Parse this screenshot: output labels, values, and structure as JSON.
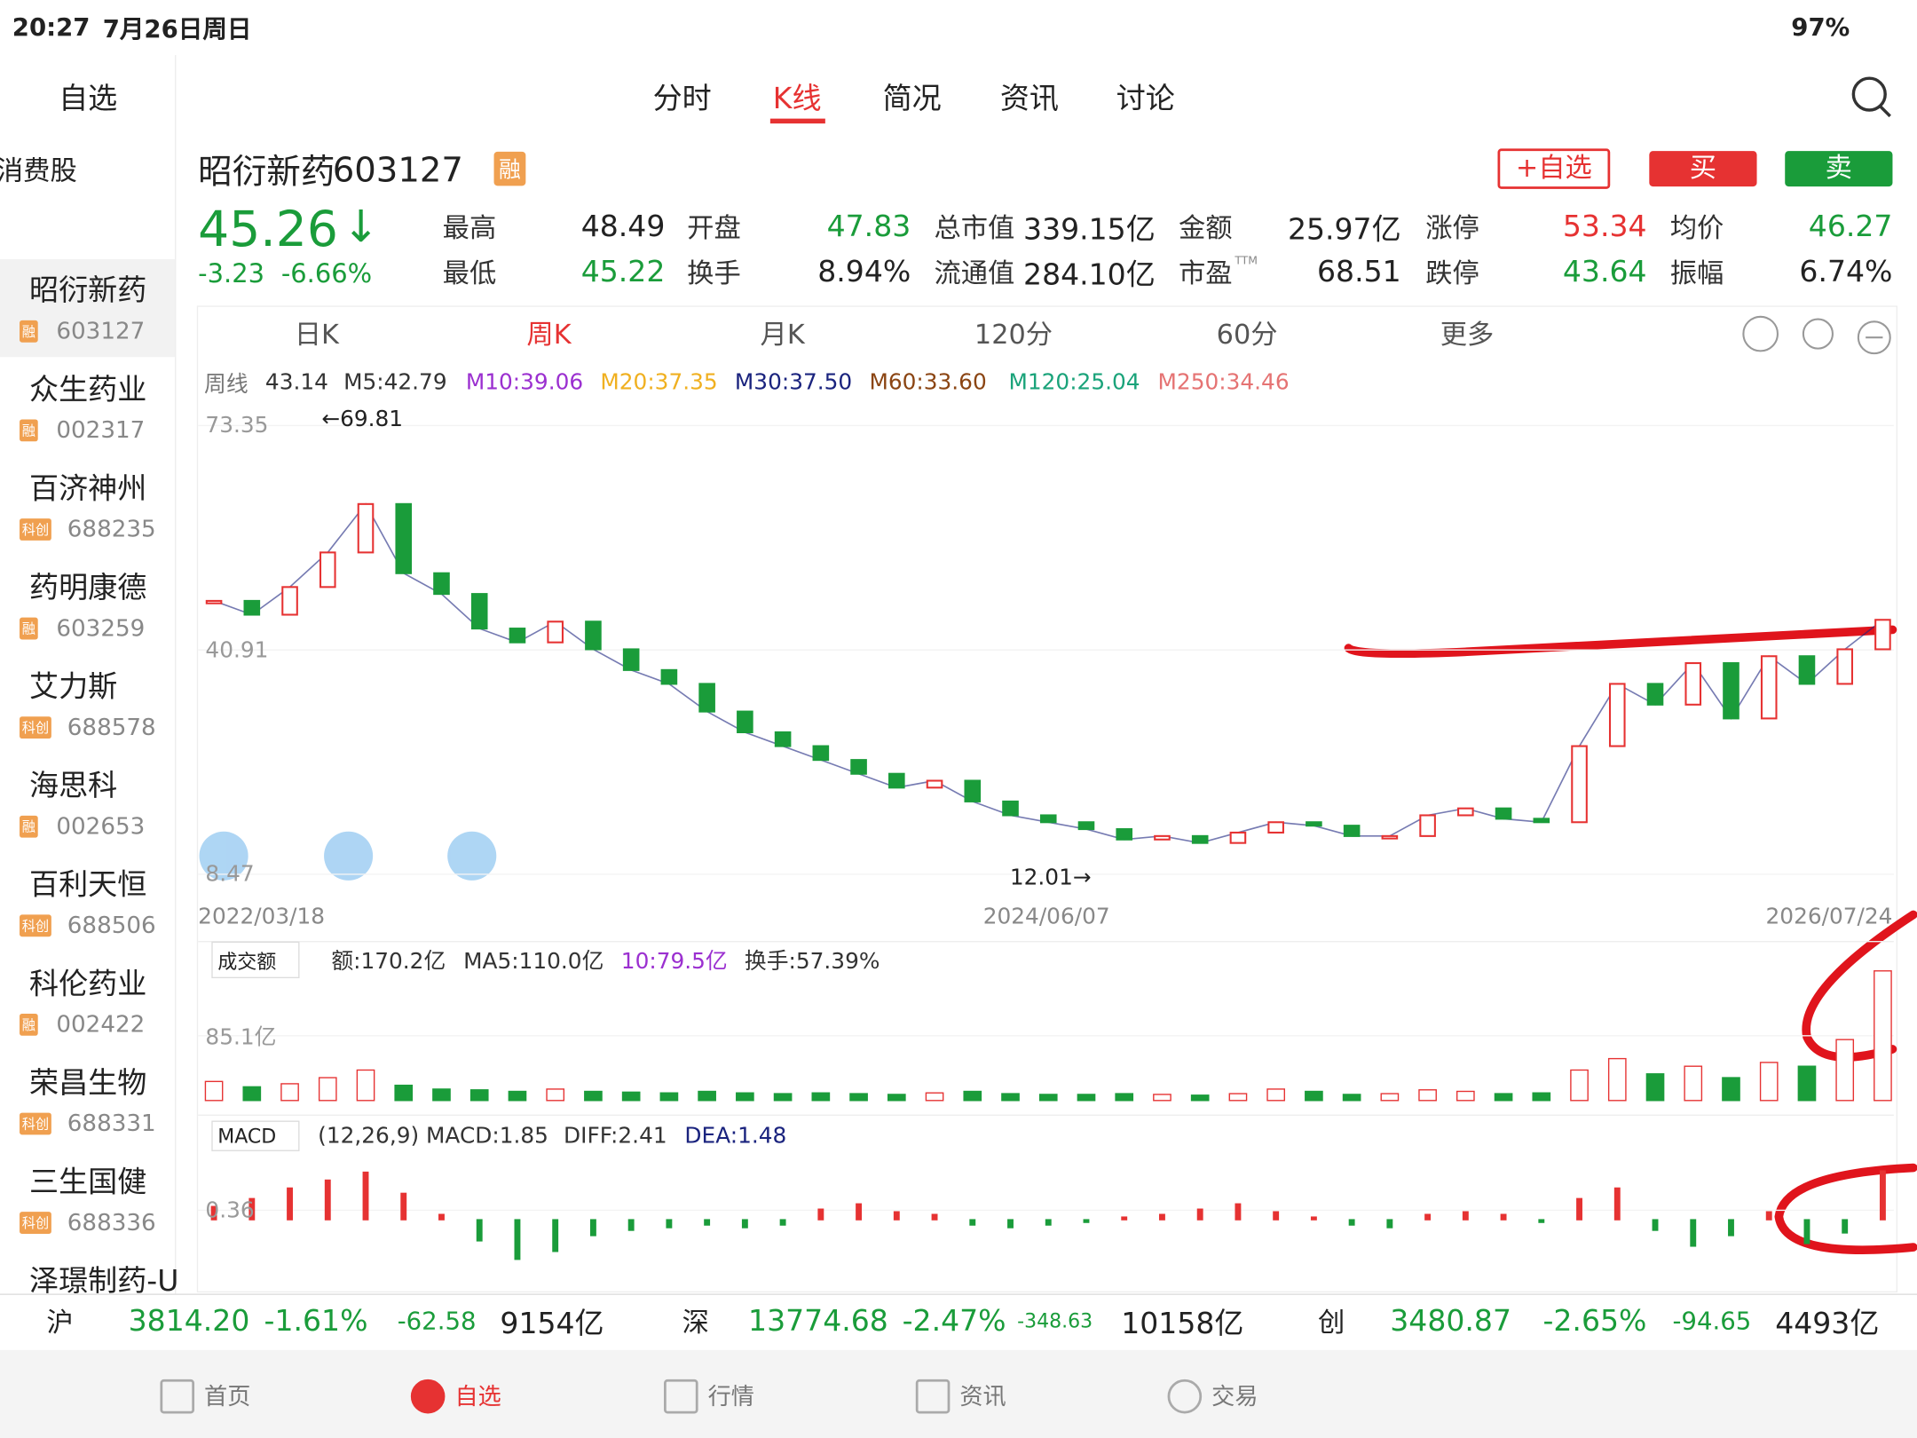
{
  "status": {
    "time": "20:27",
    "date": "7月26日周日",
    "battery": "97%"
  },
  "sidebar": {
    "title": "自选",
    "group": "药消费股",
    "stocks": [
      {
        "name": "昭衍新药",
        "badge": "融",
        "code": "603127"
      },
      {
        "name": "众生药业",
        "badge": "融",
        "code": "002317"
      },
      {
        "name": "百济神州",
        "badge": "科创",
        "code": "688235"
      },
      {
        "name": "药明康德",
        "badge": "融",
        "code": "603259"
      },
      {
        "name": "艾力斯",
        "badge": "科创",
        "code": "688578"
      },
      {
        "name": "海思科",
        "badge": "融",
        "code": "002653"
      },
      {
        "name": "百利天恒",
        "badge": "科创",
        "code": "688506"
      },
      {
        "name": "科伦药业",
        "badge": "融",
        "code": "002422"
      },
      {
        "name": "荣昌生物",
        "badge": "科创",
        "code": "688331"
      },
      {
        "name": "三生国健",
        "badge": "科创",
        "code": "688336"
      },
      {
        "name": "泽璟制药-U"
      }
    ]
  },
  "tabs": [
    "分时",
    "K线",
    "简况",
    "资讯",
    "讨论"
  ],
  "active_tab": 1,
  "header": {
    "name": "昭衍新药",
    "code": "603127",
    "badge": "融",
    "buttons": [
      "+自选",
      "买",
      "卖"
    ],
    "price": "45.26",
    "arrow": "↓",
    "change": "-3.23",
    "change_pct": "-6.66%"
  },
  "stats": [
    [
      {
        "label": "最高",
        "value": "48.49",
        "color": "#222"
      },
      {
        "label": "最低",
        "value": "45.22",
        "color": "#1a9c3a"
      }
    ],
    [
      {
        "label": "开盘",
        "value": "47.83",
        "color": "#1a9c3a"
      },
      {
        "label": "换手",
        "value": "8.94%",
        "color": "#222"
      }
    ],
    [
      {
        "label": "总市值",
        "value": "339.15亿",
        "color": "#222"
      },
      {
        "label": "流通值",
        "value": "284.10亿",
        "color": "#222"
      }
    ],
    [
      {
        "label": "金额",
        "value": "25.97亿",
        "color": "#222"
      },
      {
        "label": "市盈",
        "sup": "TTM",
        "value": "68.51",
        "color": "#222"
      }
    ],
    [
      {
        "label": "涨停",
        "value": "53.34",
        "color": "#e63232"
      },
      {
        "label": "跌停",
        "value": "43.64",
        "color": "#1a9c3a"
      }
    ],
    [
      {
        "label": "均价",
        "value": "46.27",
        "color": "#1a9c3a"
      },
      {
        "label": "振幅",
        "value": "6.74%",
        "color": "#222"
      }
    ]
  ],
  "periods": [
    "日K",
    "周K",
    "月K",
    "120分",
    "60分",
    "更多"
  ],
  "active_period": 1,
  "ma_legend": [
    {
      "text": "周线",
      "color": "#777"
    },
    {
      "text": "43.14",
      "color": "#333"
    },
    {
      "text": "M5:42.79",
      "color": "#333"
    },
    {
      "text": "M10:39.06",
      "color": "#9b30d0"
    },
    {
      "text": "M20:37.35",
      "color": "#f0b020"
    },
    {
      "text": "M30:37.50",
      "color": "#1a237e"
    },
    {
      "text": "M60:33.60",
      "color": "#8b4513"
    },
    {
      "text": "M120:25.04",
      "color": "#1aa37a"
    },
    {
      "text": "M250:34.46",
      "color": "#e57373"
    }
  ],
  "chart_data": [
    {
      "type": "candlestick",
      "values": [
        48,
        46,
        50,
        55,
        62,
        52,
        49,
        44,
        42,
        45,
        41,
        38,
        36,
        32,
        29,
        27,
        25,
        23,
        21,
        22,
        19,
        17,
        16,
        15,
        13.5,
        14,
        13,
        14.5,
        16,
        15.5,
        14,
        14,
        17,
        18,
        16.5,
        16,
        27,
        36,
        33,
        39,
        31,
        40,
        36,
        41,
        45.26
      ],
      "ylim": [
        8.47,
        73.35
      ],
      "yticks": [
        8.47,
        40.91,
        73.35
      ],
      "annotations": [
        "←69.81",
        "12.01→"
      ],
      "x_labels": [
        "2022/03/18",
        "2024/06/07",
        "2026/07/24"
      ],
      "up_color": "#e63232",
      "down_color": "#1a9c3a"
    },
    {
      "type": "bar",
      "indicator": "成交额",
      "legend": [
        {
          "text": "额:170.2亿",
          "color": "#333"
        },
        {
          "text": "MA5:110.0亿",
          "color": "#333"
        },
        {
          "text": "10:79.5亿",
          "color": "#9b30d0"
        },
        {
          "text": "换手:57.39%",
          "color": "#333"
        }
      ],
      "values": [
        25,
        18,
        22,
        30,
        40,
        20,
        15,
        14,
        12,
        15,
        12,
        11,
        10,
        12,
        10,
        9,
        10,
        9,
        8,
        10,
        12,
        9,
        8,
        8,
        9,
        8,
        7,
        9,
        15,
        12,
        8,
        9,
        14,
        12,
        9,
        10,
        40,
        55,
        35,
        45,
        30,
        50,
        45,
        80,
        170.2
      ],
      "ylim": [
        0,
        170.2
      ],
      "yticks": [
        {
          "value": 85.1,
          "label": "85.1亿"
        }
      ]
    },
    {
      "type": "bar",
      "indicator": "MACD",
      "legend": [
        {
          "text": "(12,26,9) MACD:1.85",
          "color": "#333"
        },
        {
          "text": "DIFF:2.41",
          "color": "#333"
        },
        {
          "text": "DEA:1.48",
          "color": "#1a237e"
        }
      ],
      "values": [
        0.5,
        0.8,
        1.2,
        1.5,
        1.8,
        1.0,
        0.2,
        -0.8,
        -1.5,
        -1.2,
        -0.6,
        -0.4,
        -0.3,
        -0.2,
        -0.3,
        -0.2,
        0.4,
        0.6,
        0.3,
        0.2,
        -0.2,
        -0.3,
        -0.2,
        -0.1,
        0.1,
        0.2,
        0.4,
        0.6,
        0.3,
        0.1,
        -0.2,
        -0.3,
        0.2,
        0.3,
        0.2,
        -0.1,
        0.8,
        1.2,
        -0.4,
        -1.0,
        -0.6,
        0.3,
        -0.9,
        -0.5,
        1.85
      ],
      "ylim": [
        -2.2,
        2.2
      ],
      "yticks": [
        0.36
      ]
    }
  ],
  "index_bar": [
    {
      "name": "沪",
      "price": "3814.20",
      "pct": "-1.61%",
      "change": "-62.58",
      "amount": "9154亿"
    },
    {
      "name": "深",
      "price": "13774.68",
      "pct": "-2.47%",
      "change": "-348.63",
      "amount": "10158亿"
    },
    {
      "name": "创",
      "price": "3480.87",
      "pct": "-2.65%",
      "change": "-94.65",
      "amount": "4493亿"
    }
  ],
  "nav": [
    "首页",
    "自选",
    "行情",
    "资讯",
    "交易"
  ],
  "active_nav": 1
}
